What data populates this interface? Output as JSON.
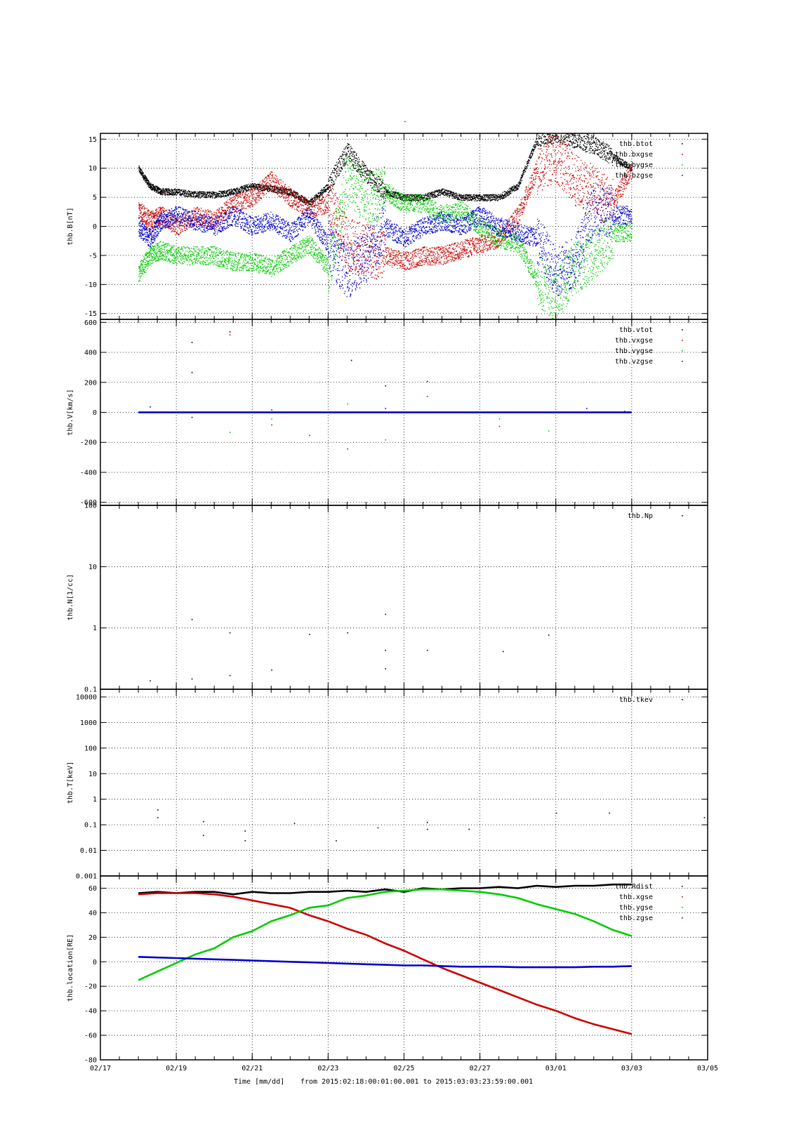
{
  "title": "-",
  "footer": {
    "time_label": "Time [mm/dd]",
    "range_label": "from 2015:02:18:00:01:00.001  to  2015:03:03:23:59:00.001"
  },
  "x_axis": {
    "unit": "days since 02/17 00:00",
    "range": [
      0,
      16
    ],
    "ticks": [
      {
        "value": 0,
        "label": "02/17"
      },
      {
        "value": 2,
        "label": "02/19"
      },
      {
        "value": 4,
        "label": "02/21"
      },
      {
        "value": 6,
        "label": "02/23"
      },
      {
        "value": 8,
        "label": "02/25"
      },
      {
        "value": 10,
        "label": "02/27"
      },
      {
        "value": 12,
        "label": "03/01"
      },
      {
        "value": 14,
        "label": "03/03"
      },
      {
        "value": 16,
        "label": "03/05"
      }
    ]
  },
  "chart_data": [
    {
      "type": "scatter",
      "ylabel": "thb.B[nT]",
      "scale": "linear",
      "ylim": [
        -16,
        16
      ],
      "yticks": [
        -15,
        -10,
        -5,
        0,
        5,
        10,
        15
      ],
      "grid": true,
      "legend_position": "top-right",
      "series": [
        {
          "name": "thb.btot",
          "color": "#000000",
          "x": [
            1.0,
            1.3,
            1.6,
            2.0,
            2.5,
            3.0,
            3.5,
            4.0,
            4.5,
            5.0,
            5.5,
            6.0,
            6.5,
            7.0,
            7.5,
            8.0,
            8.5,
            9.0,
            9.5,
            10.0,
            10.5,
            11.0,
            11.5,
            12.0,
            12.5,
            13.0,
            13.5,
            14.0
          ],
          "y": [
            10,
            7,
            6,
            6,
            5.5,
            5.5,
            6,
            7,
            6.5,
            6,
            4,
            7,
            13,
            9,
            6,
            5,
            5,
            6,
            5,
            5,
            5,
            7,
            15,
            16,
            15,
            14,
            12,
            10
          ]
        },
        {
          "name": "thb.bxgse",
          "color": "#cc0000",
          "x": [
            1.0,
            1.3,
            1.6,
            2.0,
            2.5,
            3.0,
            3.5,
            4.0,
            4.5,
            5.0,
            5.5,
            6.0,
            6.5,
            7.0,
            7.5,
            8.0,
            8.5,
            9.0,
            9.5,
            10.0,
            10.5,
            11.0,
            11.5,
            12.0,
            12.5,
            13.0,
            13.5,
            14.0
          ],
          "y": [
            3,
            1,
            2,
            0,
            2,
            1,
            4,
            5,
            8,
            5,
            3,
            4,
            -3,
            -4,
            -5,
            -6,
            -5,
            -5,
            -4,
            -3,
            -2,
            2,
            10,
            12,
            8,
            6,
            4,
            10
          ]
        },
        {
          "name": "thb.bygse",
          "color": "#00cc00",
          "x": [
            1.0,
            1.3,
            1.6,
            2.0,
            2.5,
            3.0,
            3.5,
            4.0,
            4.5,
            5.0,
            5.5,
            6.0,
            6.5,
            7.0,
            7.5,
            8.0,
            8.5,
            9.0,
            9.5,
            10.0,
            10.5,
            11.0,
            11.5,
            12.0,
            12.5,
            13.0,
            13.5,
            14.0
          ],
          "y": [
            -8,
            -5,
            -4,
            -5,
            -5,
            -5,
            -6,
            -6,
            -7,
            -5,
            -3,
            -7,
            8,
            5,
            6,
            4,
            4,
            2,
            3,
            0,
            -2,
            -3,
            -9,
            -12,
            -7,
            -5,
            -1,
            -1
          ]
        },
        {
          "name": "thb.bzgse",
          "color": "#0000cc",
          "x": [
            1.0,
            1.3,
            1.6,
            2.0,
            2.5,
            3.0,
            3.5,
            4.0,
            4.5,
            5.0,
            5.5,
            6.0,
            6.5,
            7.0,
            7.5,
            8.0,
            8.5,
            9.0,
            9.5,
            10.0,
            10.5,
            11.0,
            11.5,
            12.0,
            12.5,
            13.0,
            13.5,
            14.0
          ],
          "y": [
            0,
            -2,
            1,
            2,
            1,
            0,
            2,
            0,
            1,
            -1,
            2,
            -3,
            -8,
            -5,
            0,
            -2,
            0,
            1,
            0,
            2,
            0,
            -1,
            -2,
            -8,
            -6,
            3,
            2,
            2
          ]
        }
      ]
    },
    {
      "type": "scatter",
      "ylabel": "thb.V[km/s]",
      "scale": "linear",
      "ylim": [
        -620,
        620
      ],
      "yticks": [
        -600,
        -400,
        -200,
        0,
        200,
        400,
        600
      ],
      "grid": true,
      "legend_position": "top-right",
      "series": [
        {
          "name": "thb.vtot",
          "color": "#000000",
          "x": [
            1.0,
            2.0,
            3.0,
            4.0,
            5.0,
            6.0,
            7.0,
            8.0,
            9.0,
            10.0,
            11.0,
            12.0,
            13.0,
            14.0
          ],
          "y": [
            0,
            0,
            0,
            0,
            0,
            0,
            0,
            0,
            0,
            0,
            0,
            0,
            0,
            0
          ],
          "outliers": [
            [
              2.4,
              470
            ],
            [
              3.4,
              540
            ],
            [
              6.6,
              350
            ],
            [
              8.6,
              210
            ],
            [
              2.4,
              270
            ],
            [
              7.5,
              180
            ]
          ]
        },
        {
          "name": "thb.vxgse",
          "color": "#cc0000",
          "x": [
            1.0,
            2.0,
            3.0,
            4.0,
            5.0,
            6.0,
            7.0,
            8.0,
            9.0,
            10.0,
            11.0,
            12.0,
            13.0,
            14.0
          ],
          "y": [
            0,
            0,
            0,
            0,
            0,
            0,
            0,
            0,
            0,
            0,
            0,
            0,
            0,
            0
          ],
          "outliers": [
            [
              3.4,
              520
            ],
            [
              4.5,
              -80
            ],
            [
              5.5,
              -150
            ],
            [
              6.5,
              -240
            ],
            [
              8.6,
              110
            ],
            [
              10.5,
              -90
            ]
          ]
        },
        {
          "name": "thb.vygse",
          "color": "#00cc00",
          "x": [
            1.0,
            2.0,
            3.0,
            4.0,
            5.0,
            6.0,
            7.0,
            8.0,
            9.0,
            10.0,
            11.0,
            12.0,
            13.0,
            14.0
          ],
          "y": [
            0,
            0,
            0,
            0,
            0,
            0,
            0,
            0,
            0,
            0,
            0,
            0,
            0,
            0
          ],
          "outliers": [
            [
              3.4,
              -130
            ],
            [
              4.5,
              -40
            ],
            [
              6.5,
              60
            ],
            [
              7.5,
              -180
            ],
            [
              10.5,
              -40
            ],
            [
              11.8,
              -120
            ]
          ]
        },
        {
          "name": "thb.vzgse",
          "color": "#0000cc",
          "x": [
            1.0,
            2.0,
            3.0,
            4.0,
            5.0,
            6.0,
            7.0,
            8.0,
            9.0,
            10.0,
            11.0,
            12.0,
            13.0,
            14.0
          ],
          "y": [
            0,
            0,
            0,
            0,
            0,
            0,
            0,
            0,
            0,
            0,
            0,
            0,
            0,
            0
          ],
          "outliers": [
            [
              1.3,
              40
            ],
            [
              2.4,
              -30
            ],
            [
              4.5,
              20
            ],
            [
              7.5,
              30
            ],
            [
              12.8,
              30
            ],
            [
              13.8,
              10
            ]
          ]
        }
      ]
    },
    {
      "type": "scatter",
      "ylabel": "thb.N[1/cc]",
      "scale": "log",
      "ylim": [
        0.1,
        100
      ],
      "yticks": [
        {
          "value": 0.1,
          "label": "0.1"
        },
        {
          "value": 1,
          "label": "1"
        },
        {
          "value": 10,
          "label": "10"
        },
        {
          "value": 100,
          "label": "100"
        }
      ],
      "grid": true,
      "legend_position": "top-right",
      "series": [
        {
          "name": "thb.Np",
          "color": "#000000",
          "x": [
            1.3,
            2.4,
            2.4,
            3.4,
            3.4,
            4.5,
            5.5,
            6.5,
            7.5,
            7.5,
            7.5,
            8.6,
            10.6,
            11.8
          ],
          "y": [
            0.14,
            1.4,
            0.15,
            0.85,
            0.17,
            0.21,
            0.8,
            0.85,
            1.7,
            0.44,
            0.22,
            0.44,
            0.42,
            0.78
          ]
        }
      ]
    },
    {
      "type": "scatter",
      "ylabel": "thb.T[keV]",
      "scale": "log",
      "ylim": [
        0.001,
        20000
      ],
      "yticks": [
        {
          "value": 0.001,
          "label": "0.001"
        },
        {
          "value": 0.01,
          "label": "0.01"
        },
        {
          "value": 0.1,
          "label": "0.1"
        },
        {
          "value": 1,
          "label": "1"
        },
        {
          "value": 10,
          "label": "10"
        },
        {
          "value": 100,
          "label": "100"
        },
        {
          "value": 1000,
          "label": "1000"
        },
        {
          "value": 10000,
          "label": "10000"
        }
      ],
      "grid": true,
      "legend_position": "top-right",
      "series": [
        {
          "name": "thb.tkev",
          "color": "#000000",
          "x": [
            1.5,
            1.5,
            2.7,
            2.7,
            3.8,
            3.8,
            5.1,
            6.2,
            7.3,
            8.6,
            8.6,
            9.7,
            12.0,
            13.4,
            15.9
          ],
          "y": [
            0.4,
            0.2,
            0.14,
            0.04,
            0.06,
            0.025,
            0.12,
            0.025,
            0.08,
            0.13,
            0.07,
            0.07,
            0.3,
            0.3,
            0.2
          ]
        }
      ]
    },
    {
      "type": "line",
      "ylabel": "thb.location[RE]",
      "scale": "linear",
      "ylim": [
        -80,
        70
      ],
      "yticks": [
        -80,
        -60,
        -40,
        -20,
        0,
        20,
        40,
        60
      ],
      "grid": true,
      "legend_position": "top-right",
      "series": [
        {
          "name": "thb.Rdist",
          "color": "#000000",
          "x": [
            1.0,
            1.5,
            2.0,
            2.5,
            3.0,
            3.5,
            4.0,
            4.5,
            5.0,
            5.5,
            6.0,
            6.5,
            7.0,
            7.5,
            8.0,
            8.5,
            9.0,
            9.5,
            10.0,
            10.5,
            11.0,
            11.5,
            12.0,
            12.5,
            13.0,
            13.5,
            14.0
          ],
          "y": [
            56,
            57,
            56,
            57,
            57,
            55,
            57,
            56,
            56,
            57,
            57,
            58,
            57,
            59,
            57,
            60,
            59,
            60,
            60,
            61,
            60,
            62,
            61,
            62,
            62,
            63,
            63
          ]
        },
        {
          "name": "thb.xgse",
          "color": "#cc0000",
          "x": [
            1.0,
            1.5,
            2.0,
            2.5,
            3.0,
            3.5,
            4.0,
            4.5,
            5.0,
            5.5,
            6.0,
            6.5,
            7.0,
            7.5,
            8.0,
            8.5,
            9.0,
            9.5,
            10.0,
            10.5,
            11.0,
            11.5,
            12.0,
            12.5,
            13.0,
            13.5,
            14.0
          ],
          "y": [
            55,
            56,
            56,
            56,
            55,
            53,
            50,
            47,
            44,
            38,
            33,
            27,
            22,
            15,
            9,
            2,
            -5,
            -11,
            -17,
            -23,
            -29,
            -35,
            -40,
            -46,
            -51,
            -55,
            -59
          ]
        },
        {
          "name": "thb.ygse",
          "color": "#00cc00",
          "x": [
            1.0,
            1.5,
            2.0,
            2.5,
            3.0,
            3.5,
            4.0,
            4.5,
            5.0,
            5.5,
            6.0,
            6.5,
            7.0,
            7.5,
            8.0,
            8.5,
            9.0,
            9.5,
            10.0,
            10.5,
            11.0,
            11.5,
            12.0,
            12.5,
            13.0,
            13.5,
            14.0
          ],
          "y": [
            -15,
            -8,
            -1,
            6,
            11,
            20,
            25,
            33,
            38,
            44,
            46,
            52,
            54,
            57,
            58,
            59,
            59,
            58,
            57,
            55,
            52,
            47,
            43,
            39,
            33,
            26,
            21
          ]
        },
        {
          "name": "thb.zgse",
          "color": "#0000cc",
          "x": [
            1.0,
            1.5,
            2.0,
            2.5,
            3.0,
            3.5,
            4.0,
            4.5,
            5.0,
            5.5,
            6.0,
            6.5,
            7.0,
            7.5,
            8.0,
            8.5,
            9.0,
            9.5,
            10.0,
            10.5,
            11.0,
            11.5,
            12.0,
            12.5,
            13.0,
            13.5,
            14.0
          ],
          "y": [
            4,
            3.5,
            3,
            2.5,
            2,
            1.5,
            1,
            0.5,
            0,
            -0.5,
            -1,
            -1.5,
            -2,
            -2.5,
            -3,
            -3,
            -3.5,
            -4,
            -4,
            -4,
            -4.5,
            -4.5,
            -4.5,
            -4.5,
            -4,
            -4,
            -3.5
          ]
        }
      ]
    }
  ]
}
